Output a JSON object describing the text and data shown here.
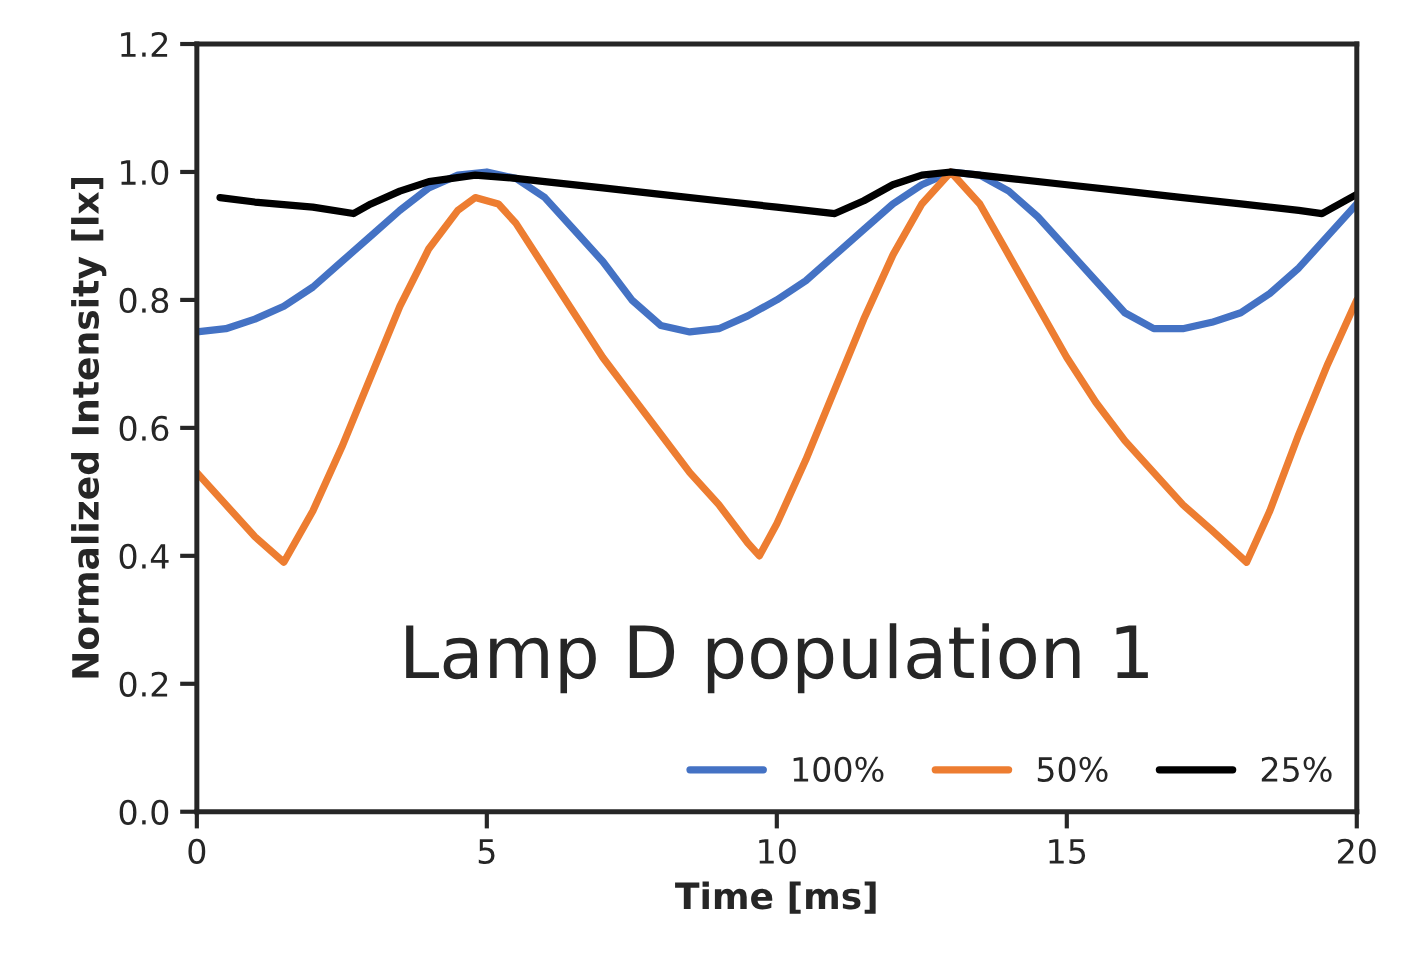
{
  "chart_data": {
    "type": "line",
    "xlabel": "Time [ms]",
    "ylabel": "Normalized Intensity [lx]",
    "annotations": [
      "Lamp D population 1"
    ],
    "xlim": [
      0,
      20
    ],
    "xticks": [
      0,
      5,
      10,
      15,
      20
    ],
    "ylim": [
      0,
      1.2
    ],
    "yticks": [
      {
        "value": 0,
        "label": "0.0"
      },
      {
        "value": 0.2,
        "label": "0.2"
      },
      {
        "value": 0.4,
        "label": "0.4"
      },
      {
        "value": 0.6,
        "label": "0.6"
      },
      {
        "value": 0.8,
        "label": "0.8"
      },
      {
        "value": 1.0,
        "label": "1.0"
      },
      {
        "value": 1.2,
        "label": "1.2"
      }
    ],
    "grid": false,
    "legend": "bottom right",
    "marker": "none",
    "line_style": "solid",
    "series": [
      {
        "name": "100%",
        "color": "#4472c4",
        "x": [
          0,
          0.5,
          1,
          1.5,
          2,
          2.5,
          3,
          3.5,
          4,
          4.5,
          5,
          5.5,
          6,
          6.5,
          7,
          7.5,
          8,
          8.5,
          9,
          9.5,
          10,
          10.5,
          11,
          11.5,
          12,
          12.5,
          13,
          13.5,
          14,
          14.5,
          15,
          15.5,
          16,
          16.5,
          17,
          17.5,
          18,
          18.5,
          19,
          19.5,
          20
        ],
        "values": [
          0.75,
          0.755,
          0.77,
          0.79,
          0.82,
          0.86,
          0.9,
          0.94,
          0.975,
          0.995,
          1.0,
          0.99,
          0.96,
          0.91,
          0.86,
          0.8,
          0.76,
          0.75,
          0.755,
          0.775,
          0.8,
          0.83,
          0.87,
          0.91,
          0.95,
          0.98,
          1.0,
          0.995,
          0.97,
          0.93,
          0.88,
          0.83,
          0.78,
          0.755,
          0.755,
          0.765,
          0.78,
          0.81,
          0.85,
          0.9,
          0.95
        ]
      },
      {
        "name": "50%",
        "color": "#ed7d31",
        "x": [
          0,
          0.5,
          1,
          1.5,
          2,
          2.5,
          3,
          3.5,
          4,
          4.5,
          4.8,
          5.2,
          5.5,
          6,
          6.5,
          7,
          7.5,
          8,
          8.5,
          9,
          9.5,
          9.7,
          10,
          10.5,
          11,
          11.5,
          12,
          12.5,
          13,
          13.5,
          14,
          14.5,
          15,
          15.5,
          16,
          16.5,
          17,
          17.5,
          18.1,
          18.5,
          19,
          19.5,
          20
        ],
        "values": [
          0.53,
          0.48,
          0.43,
          0.39,
          0.47,
          0.57,
          0.68,
          0.79,
          0.88,
          0.94,
          0.96,
          0.95,
          0.92,
          0.85,
          0.78,
          0.71,
          0.65,
          0.59,
          0.53,
          0.48,
          0.42,
          0.4,
          0.45,
          0.55,
          0.66,
          0.77,
          0.87,
          0.95,
          1.0,
          0.95,
          0.87,
          0.79,
          0.71,
          0.64,
          0.58,
          0.53,
          0.48,
          0.44,
          0.39,
          0.47,
          0.59,
          0.7,
          0.8
        ]
      },
      {
        "name": "25%",
        "color": "#000000",
        "x": [
          0.4,
          1,
          2,
          2.7,
          3,
          3.5,
          4,
          4.8,
          5.5,
          6,
          7,
          8,
          9,
          10,
          11,
          11.5,
          12,
          12.5,
          13,
          13.5,
          14,
          15,
          16,
          17,
          18,
          19,
          19.4,
          20
        ],
        "values": [
          0.96,
          0.953,
          0.945,
          0.935,
          0.95,
          0.97,
          0.985,
          0.995,
          0.99,
          0.985,
          0.975,
          0.965,
          0.955,
          0.945,
          0.935,
          0.955,
          0.98,
          0.995,
          1.0,
          0.995,
          0.99,
          0.98,
          0.97,
          0.96,
          0.95,
          0.94,
          0.935,
          0.965
        ]
      }
    ]
  }
}
